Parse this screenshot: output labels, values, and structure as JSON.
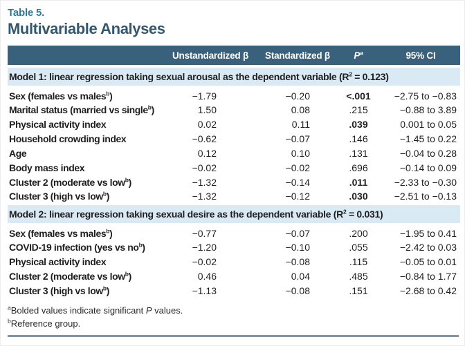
{
  "colors": {
    "header_bg": "#3a617b",
    "model_band_bg": "#daeaf5",
    "table_label_color": "#2e7b99",
    "title_color": "#33576d",
    "bottom_rule_color": "#7d97a9",
    "body_text_color": "#1f1f1f"
  },
  "table_label": "Table 5.",
  "table_title": "Multivariable Analyses",
  "columns": {
    "unstd": "Unstandardized β",
    "std": "Standardized β",
    "p_base": "P",
    "p_sup": "a",
    "ci": "95% CI"
  },
  "sections": [
    {
      "header_prefix": "Model 1: linear regression taking sexual arousal as the dependent variable (R",
      "header_sup": "2",
      "header_suffix": " = 0.123)",
      "rows": [
        {
          "label": "Sex (females vs males",
          "label_sup": "b",
          "label_end": ")",
          "unstd": "−1.79",
          "std": "−0.20",
          "p": "<.001",
          "p_bold": true,
          "ci": "−2.75 to −0.83"
        },
        {
          "label": "Marital status (married vs single",
          "label_sup": "b",
          "label_end": ")",
          "unstd": "1.50",
          "std": "0.08",
          "p": ".215",
          "p_bold": false,
          "ci": "−0.88 to 3.89"
        },
        {
          "label": "Physical activity index",
          "unstd": "0.02",
          "std": "0.11",
          "p": ".039",
          "p_bold": true,
          "ci": "0.001 to 0.05"
        },
        {
          "label": "Household crowding index",
          "unstd": "−0.62",
          "std": "−0.07",
          "p": ".146",
          "p_bold": false,
          "ci": "−1.45 to 0.22"
        },
        {
          "label": "Age",
          "unstd": "0.12",
          "std": "0.10",
          "p": ".131",
          "p_bold": false,
          "ci": "−0.04 to 0.28"
        },
        {
          "label": "Body mass index",
          "unstd": "−0.02",
          "std": "−0.02",
          "p": ".696",
          "p_bold": false,
          "ci": "−0.14 to 0.09"
        },
        {
          "label": "Cluster 2 (moderate vs low",
          "label_sup": "b",
          "label_end": ")",
          "unstd": "−1.32",
          "std": "−0.14",
          "p": ".011",
          "p_bold": true,
          "ci": "−2.33 to −0.30"
        },
        {
          "label": "Cluster 3 (high vs low",
          "label_sup": "b",
          "label_end": ")",
          "unstd": "−1.32",
          "std": "−0.12",
          "p": ".030",
          "p_bold": true,
          "ci": "−2.51 to −0.13"
        }
      ]
    },
    {
      "header_prefix": "Model 2: linear regression taking sexual desire as the dependent variable (R",
      "header_sup": "2",
      "header_suffix": " = 0.031)",
      "rows": [
        {
          "label": "Sex (females vs males",
          "label_sup": "b",
          "label_end": ")",
          "unstd": "−0.77",
          "std": "−0.07",
          "p": ".200",
          "p_bold": false,
          "ci": "−1.95 to 0.41"
        },
        {
          "label": "COVID-19 infection (yes vs no",
          "label_sup": "b",
          "label_end": ")",
          "unstd": "−1.20",
          "std": "−0.10",
          "p": ".055",
          "p_bold": false,
          "ci": "−2.42 to 0.03"
        },
        {
          "label": "Physical activity index",
          "unstd": "−0.02",
          "std": "−0.08",
          "p": ".115",
          "p_bold": false,
          "ci": "−0.05 to 0.01"
        },
        {
          "label": "Cluster 2 (moderate vs low",
          "label_sup": "b",
          "label_end": ")",
          "unstd": "0.46",
          "std": "0.04",
          "p": ".485",
          "p_bold": false,
          "ci": "−0.84 to 1.77"
        },
        {
          "label": "Cluster 3 (high vs low",
          "label_sup": "b",
          "label_end": ")",
          "unstd": "−1.13",
          "std": "−0.08",
          "p": ".151",
          "p_bold": false,
          "ci": "−2.68 to 0.42"
        }
      ]
    }
  ],
  "footnotes": {
    "a_marker": "a",
    "a_prefix": "Bolded values indicate significant ",
    "a_italic": "P",
    "a_suffix": " values.",
    "b_marker": "b",
    "b_text": "Reference group."
  }
}
